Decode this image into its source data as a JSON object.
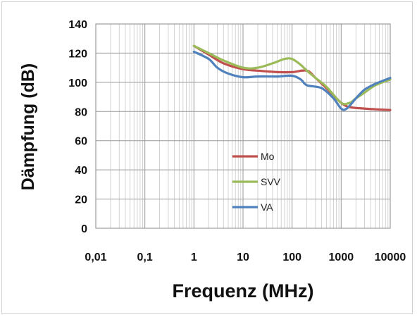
{
  "chart_data": {
    "type": "line",
    "title": "",
    "xlabel": "Frequenz (MHz)",
    "ylabel": "Dämpfung (dB)",
    "x_scale": "log",
    "xlim": [
      0.01,
      10000
    ],
    "ylim": [
      0,
      140
    ],
    "x_tick_labels": [
      "0,01",
      "0,1",
      "1",
      "10",
      "100",
      "1000",
      "10000"
    ],
    "x_tick_values": [
      0.01,
      0.1,
      1,
      10,
      100,
      1000,
      10000
    ],
    "y_tick_labels": [
      "0",
      "20",
      "40",
      "60",
      "80",
      "100",
      "120",
      "140"
    ],
    "y_tick_values": [
      0,
      20,
      40,
      60,
      80,
      100,
      120,
      140
    ],
    "grid": true,
    "legend_position": "center",
    "series": [
      {
        "name": "Mo",
        "color": "#c0504d",
        "points": [
          [
            1,
            125
          ],
          [
            2,
            119
          ],
          [
            4,
            113
          ],
          [
            10,
            109
          ],
          [
            20,
            108
          ],
          [
            50,
            107
          ],
          [
            100,
            107
          ],
          [
            200,
            108
          ],
          [
            300,
            103
          ],
          [
            500,
            96
          ],
          [
            1000,
            86
          ],
          [
            1500,
            83
          ],
          [
            3000,
            82
          ],
          [
            5000,
            81.5
          ],
          [
            10000,
            81
          ]
        ]
      },
      {
        "name": "SVV",
        "color": "#9bbb59",
        "points": [
          [
            1,
            125
          ],
          [
            2,
            120
          ],
          [
            4,
            115
          ],
          [
            10,
            110
          ],
          [
            20,
            110
          ],
          [
            40,
            113
          ],
          [
            70,
            116
          ],
          [
            100,
            116
          ],
          [
            150,
            112
          ],
          [
            200,
            108
          ],
          [
            300,
            103
          ],
          [
            500,
            97
          ],
          [
            1000,
            86
          ],
          [
            1500,
            86
          ],
          [
            2000,
            89
          ],
          [
            3000,
            93
          ],
          [
            5000,
            98
          ],
          [
            10000,
            102
          ]
        ]
      },
      {
        "name": "VA",
        "color": "#4f81bd",
        "points": [
          [
            1,
            121
          ],
          [
            2,
            116
          ],
          [
            3,
            110
          ],
          [
            5,
            106
          ],
          [
            10,
            103.5
          ],
          [
            20,
            104
          ],
          [
            50,
            104
          ],
          [
            100,
            104.5
          ],
          [
            150,
            102
          ],
          [
            200,
            98
          ],
          [
            400,
            96
          ],
          [
            700,
            89
          ],
          [
            1000,
            82
          ],
          [
            1300,
            82
          ],
          [
            2000,
            89
          ],
          [
            3000,
            95
          ],
          [
            5000,
            99
          ],
          [
            10000,
            103
          ]
        ]
      }
    ]
  }
}
